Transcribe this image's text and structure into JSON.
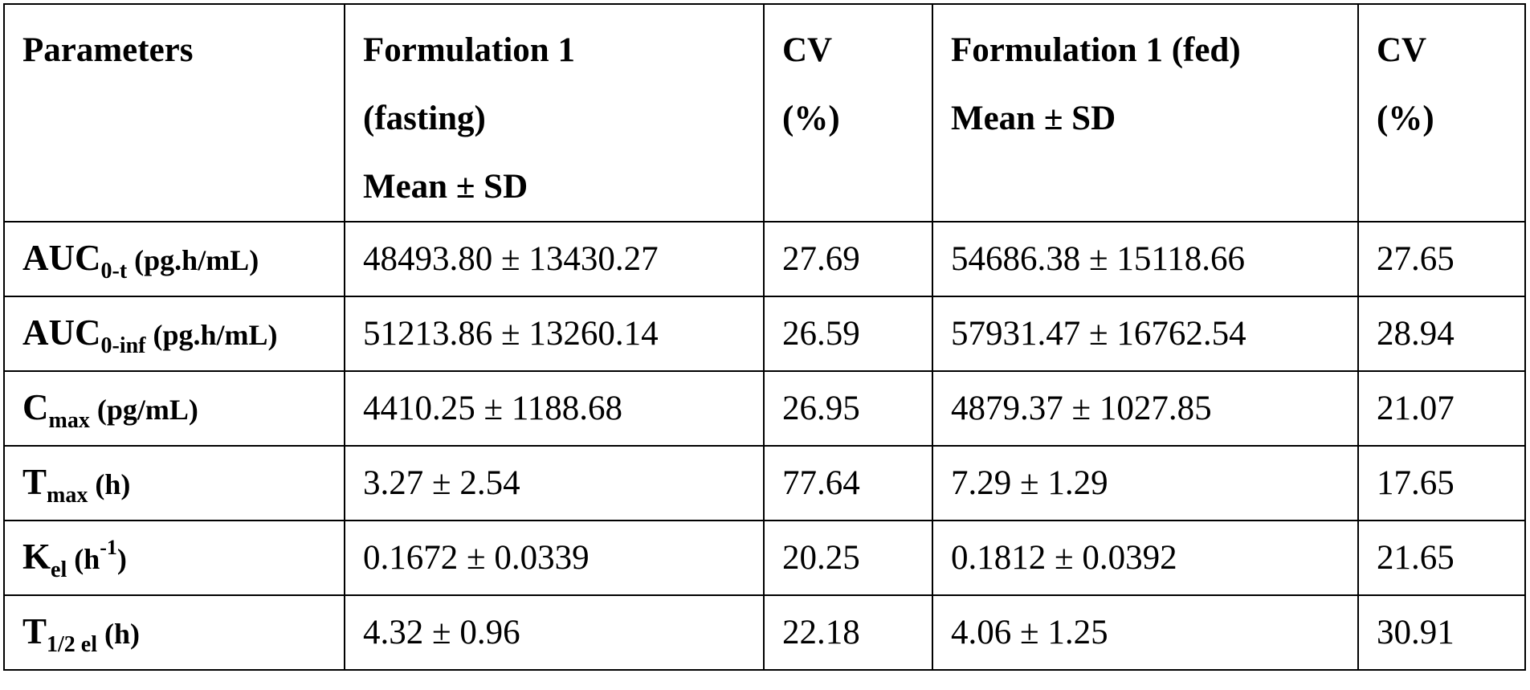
{
  "table": {
    "headers": [
      {
        "lines": [
          "Parameters"
        ]
      },
      {
        "lines": [
          "Formulation 1",
          "(fasting)",
          "Mean  ±  SD"
        ]
      },
      {
        "lines": [
          "CV",
          "(%)"
        ]
      },
      {
        "lines": [
          "Formulation 1 (fed)",
          "Mean  ±  SD"
        ]
      },
      {
        "lines": [
          "CV",
          "(%)"
        ]
      }
    ],
    "rows": [
      {
        "param": {
          "main": "AUC",
          "sub": "0-t",
          "sup": "",
          "unit": " (pg.h/mL)"
        },
        "fasting": "48493.80 ± 13430.27",
        "cv_fasting": "27.69",
        "fed": "54686.38 ± 15118.66",
        "cv_fed": "27.65"
      },
      {
        "param": {
          "main": "AUC",
          "sub": "0-inf",
          "sup": "",
          "unit": " (pg.h/mL)"
        },
        "fasting": "51213.86 ± 13260.14",
        "cv_fasting": "26.59",
        "fed": "57931.47  ± 16762.54",
        "cv_fed": "28.94"
      },
      {
        "param": {
          "main": "C",
          "sub": "max",
          "sup": "",
          "unit": " (pg/mL)"
        },
        "fasting": "4410.25 ± 1188.68",
        "cv_fasting": "26.95",
        "fed": "4879.37 ±  1027.85",
        "cv_fed": "21.07"
      },
      {
        "param": {
          "main": "T",
          "sub": "max",
          "sup": "",
          "unit": " (h)"
        },
        "fasting": "3.27 ±  2.54",
        "cv_fasting": "77.64",
        "fed": "7.29  ± 1.29",
        "cv_fed": "17.65"
      },
      {
        "param": {
          "main": "K",
          "sub": "el",
          "sup": "-1",
          "unit": " (h",
          "unit_close": ")"
        },
        "fasting": "0.1672 ±  0.0339",
        "cv_fasting": "20.25",
        "fed": "0.1812 ±  0.0392",
        "cv_fed": "21.65"
      },
      {
        "param": {
          "main": "T",
          "sub": "1/2 el",
          "sup": "",
          "unit": " (h)"
        },
        "fasting": "4.32  ± 0.96",
        "cv_fasting": "22.18",
        "fed": "4.06 ±  1.25",
        "cv_fed": "30.91"
      }
    ]
  }
}
